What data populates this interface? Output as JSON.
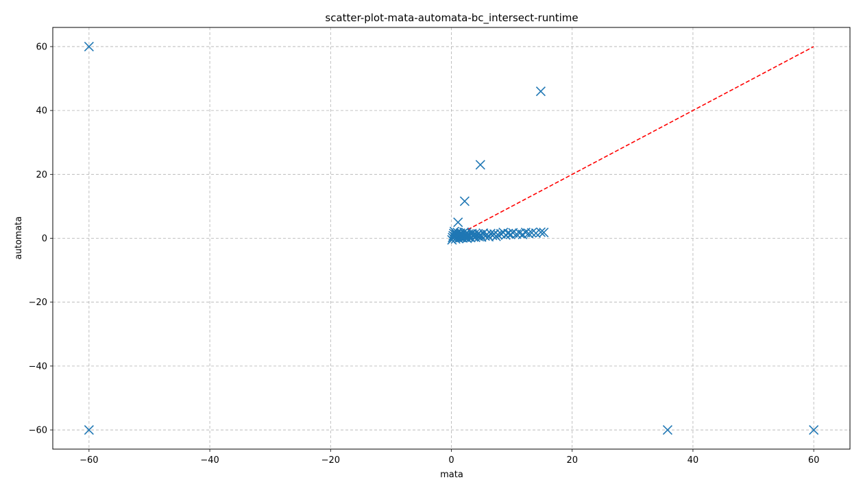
{
  "chart_data": {
    "type": "scatter",
    "title": "scatter-plot-mata-automata-bc_intersect-runtime",
    "xlabel": "mata",
    "ylabel": "automata",
    "xlim": [
      -66,
      66
    ],
    "ylim": [
      -66,
      66
    ],
    "xticks": [
      -60,
      -40,
      -20,
      0,
      20,
      40,
      60
    ],
    "yticks": [
      -60,
      -40,
      -20,
      0,
      20,
      40,
      60
    ],
    "xtick_labels": [
      "−60",
      "−40",
      "−20",
      "0",
      "20",
      "40",
      "60"
    ],
    "ytick_labels": [
      "−60",
      "−40",
      "−20",
      "0",
      "20",
      "40",
      "60"
    ],
    "grid": true,
    "marker": "x",
    "series": [
      {
        "color": "#1f77b4",
        "points": [
          [
            -60,
            60
          ],
          [
            -60,
            -60
          ],
          [
            35.8,
            -60
          ],
          [
            60,
            -60
          ],
          [
            14.8,
            46
          ],
          [
            4.8,
            23
          ],
          [
            2.2,
            11.6
          ],
          [
            1.1,
            5
          ],
          [
            0.1,
            -0.5
          ],
          [
            0.2,
            0.2
          ],
          [
            0.3,
            0.8
          ],
          [
            0.4,
            1.5
          ],
          [
            0.5,
            2.1
          ],
          [
            0.6,
            0.5
          ],
          [
            0.7,
            -0.2
          ],
          [
            0.8,
            1.2
          ],
          [
            0.9,
            0.3
          ],
          [
            1.0,
            1.8
          ],
          [
            1.1,
            0.6
          ],
          [
            1.2,
            -0.1
          ],
          [
            1.3,
            1.0
          ],
          [
            1.4,
            0.4
          ],
          [
            1.5,
            1.6
          ],
          [
            1.6,
            0.2
          ],
          [
            1.7,
            0.9
          ],
          [
            1.8,
            1.4
          ],
          [
            1.9,
            0.1
          ],
          [
            2.0,
            0.7
          ],
          [
            2.1,
            1.9
          ],
          [
            2.2,
            0.3
          ],
          [
            2.3,
            1.1
          ],
          [
            2.4,
            0.5
          ],
          [
            2.5,
            1.7
          ],
          [
            2.6,
            0.0
          ],
          [
            2.7,
            0.8
          ],
          [
            2.8,
            1.3
          ],
          [
            2.9,
            0.4
          ],
          [
            3.0,
            1.0
          ],
          [
            3.2,
            0.2
          ],
          [
            3.4,
            1.5
          ],
          [
            3.6,
            0.6
          ],
          [
            3.8,
            1.2
          ],
          [
            4.0,
            0.3
          ],
          [
            4.2,
            0.9
          ],
          [
            4.4,
            1.4
          ],
          [
            4.6,
            0.5
          ],
          [
            4.8,
            1.1
          ],
          [
            5.0,
            0.4
          ],
          [
            5.3,
            1.6
          ],
          [
            5.6,
            0.7
          ],
          [
            5.9,
            1.2
          ],
          [
            6.2,
            0.5
          ],
          [
            6.5,
            1.5
          ],
          [
            6.8,
            0.9
          ],
          [
            7.1,
            1.3
          ],
          [
            7.4,
            0.6
          ],
          [
            7.7,
            1.1
          ],
          [
            8.2,
            1.4
          ],
          [
            8.6,
            1.8
          ],
          [
            9.0,
            1.0
          ],
          [
            9.4,
            1.5
          ],
          [
            9.8,
            1.2
          ],
          [
            10.2,
            1.7
          ],
          [
            10.8,
            1.3
          ],
          [
            11.3,
            1.6
          ],
          [
            11.8,
            1.2
          ],
          [
            12.3,
            1.8
          ],
          [
            12.8,
            1.5
          ],
          [
            13.3,
            1.7
          ],
          [
            14.0,
            1.6
          ],
          [
            14.8,
            1.9
          ],
          [
            15.3,
            1.8
          ]
        ]
      }
    ],
    "reference_line": {
      "points": [
        [
          0,
          0
        ],
        [
          60,
          60
        ]
      ],
      "color": "#ff0000",
      "style": "dashed"
    }
  }
}
